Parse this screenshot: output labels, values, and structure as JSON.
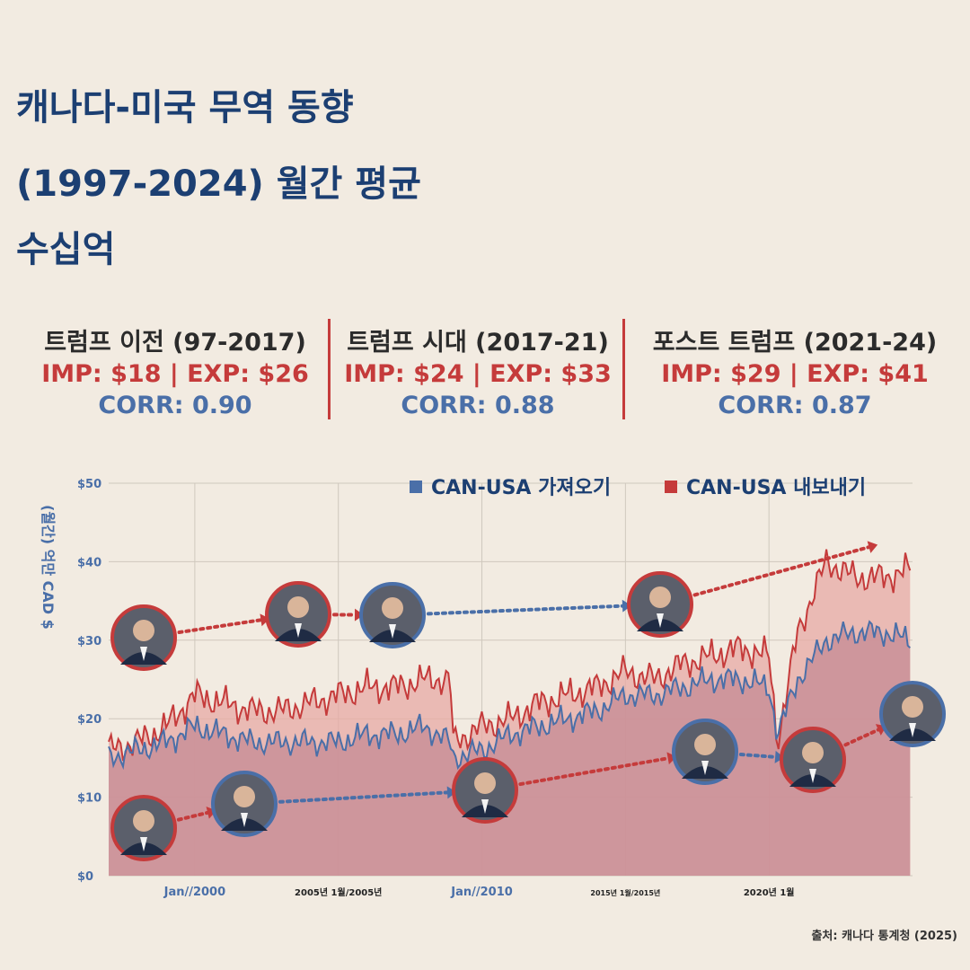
{
  "title": {
    "line1": "캐나다-미국 무역 동향",
    "line2": "(1997-2024) 월간 평균",
    "line3": "수십억"
  },
  "eras": [
    {
      "name": "트럼프 이전 (97-2017)",
      "values": "IMP: $18 | EXP: $26",
      "corr": "CORR: 0.90"
    },
    {
      "name": "트럼프 시대 (2017-21)",
      "values": "IMP: $24 | EXP: $33",
      "corr": "CORR: 0.88"
    },
    {
      "name": "포스트 트럼프 (2021-24)",
      "values": "IMP: $29 | EXP: $41",
      "corr": "CORR: 0.87"
    }
  ],
  "source": "출처: 캐나다 통계청 (2025)",
  "colors": {
    "imports": "#4a6fa8",
    "exports": "#c53b3b",
    "title": "#1c3f72",
    "background": "#f2ebe1"
  },
  "chart_data": {
    "type": "area",
    "ylabel": "(월간) 억만 CAD $",
    "ylim": [
      0,
      50
    ],
    "xlim": [
      "1997-01",
      "2024-12"
    ],
    "yticks": [
      "$0",
      "$10",
      "$20",
      "$30",
      "$40",
      "$50"
    ],
    "xticks": [
      {
        "date": "2000-01",
        "label": "Jan//2000"
      },
      {
        "date": "2005-01",
        "label": "2005년 1월/2005년"
      },
      {
        "date": "2010-01",
        "label": "Jan//2010"
      },
      {
        "date": "2015-01",
        "label": "2015년 1월/2015년"
      },
      {
        "date": "2020-01",
        "label": "2020년 1월"
      }
    ],
    "grid": true,
    "legend_position": "top-right",
    "series": [
      {
        "name": "CAN-USA 가져오기",
        "color": "#4a6fa8",
        "x": [
          "1997",
          "1998",
          "1999",
          "2000",
          "2001",
          "2002",
          "2003",
          "2004",
          "2005",
          "2006",
          "2007",
          "2008",
          "2008.9",
          "2009",
          "2010",
          "2011",
          "2012",
          "2013",
          "2014",
          "2015",
          "2016",
          "2017",
          "2018",
          "2019",
          "2020",
          "2020.3",
          "2021",
          "2022",
          "2023",
          "2024",
          "2024.9"
        ],
        "values": [
          15,
          16,
          17,
          19,
          18,
          17,
          17,
          17,
          17,
          18,
          18,
          19,
          17,
          15,
          16,
          18,
          19,
          20,
          21,
          23,
          23,
          24,
          25,
          25,
          24,
          18,
          25,
          30,
          31,
          31,
          30
        ]
      },
      {
        "name": "CAN-USA 내보내기",
        "color": "#c53b3b",
        "x": [
          "1997",
          "1998",
          "1999",
          "2000",
          "2001",
          "2002",
          "2003",
          "2004",
          "2005",
          "2006",
          "2007",
          "2008",
          "2008.9",
          "2009",
          "2010",
          "2011",
          "2012",
          "2013",
          "2014",
          "2015",
          "2016",
          "2017",
          "2018",
          "2019",
          "2020",
          "2020.3",
          "2021",
          "2022",
          "2023",
          "2024",
          "2024.9"
        ],
        "values": [
          16,
          17,
          19,
          23,
          22,
          21,
          21,
          22,
          23,
          24,
          24,
          25,
          25,
          17,
          19,
          20,
          22,
          23,
          24,
          26,
          25,
          27,
          28,
          29,
          28,
          17,
          31,
          40,
          38,
          38,
          39
        ]
      }
    ]
  },
  "leaders": [
    {
      "id": "chretien",
      "side": "exports",
      "icon": "leader-portrait-icon"
    },
    {
      "id": "martin",
      "side": "exports",
      "icon": "leader-portrait-icon"
    },
    {
      "id": "harper",
      "side": "imports",
      "icon": "leader-portrait-icon"
    },
    {
      "id": "trudeau",
      "side": "exports",
      "icon": "leader-portrait-icon"
    },
    {
      "id": "clinton",
      "side": "exports",
      "icon": "leader-portrait-icon"
    },
    {
      "id": "bush",
      "side": "imports",
      "icon": "leader-portrait-icon"
    },
    {
      "id": "obama",
      "side": "exports",
      "icon": "leader-portrait-icon"
    },
    {
      "id": "trump-1",
      "side": "imports",
      "icon": "leader-portrait-icon"
    },
    {
      "id": "biden",
      "side": "exports",
      "icon": "leader-portrait-icon"
    },
    {
      "id": "trump-2",
      "side": "imports",
      "icon": "leader-portrait-icon"
    }
  ]
}
